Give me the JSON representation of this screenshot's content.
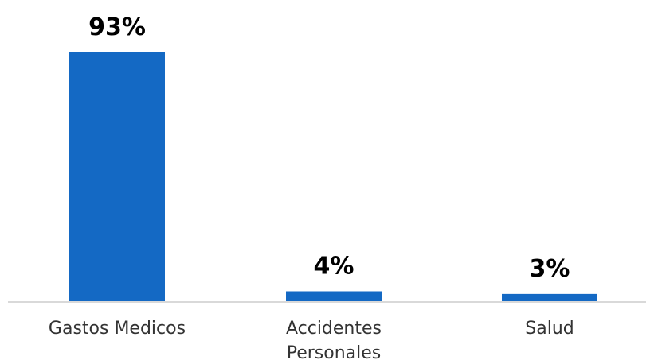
{
  "chart_data": {
    "type": "bar",
    "categories": [
      [
        "Gastos Medicos"
      ],
      [
        "Accidentes",
        "Personales"
      ],
      [
        "Salud"
      ]
    ],
    "values": [
      93,
      4,
      3
    ],
    "value_labels": [
      "93%",
      "4%",
      "3%"
    ],
    "unit": "%",
    "ylim": [
      0,
      93
    ],
    "grid": false,
    "legend": "none",
    "title": "",
    "xlabel": "",
    "ylabel": "",
    "bar_color": "#1469C4",
    "axis_color": "#D9D9D9"
  }
}
